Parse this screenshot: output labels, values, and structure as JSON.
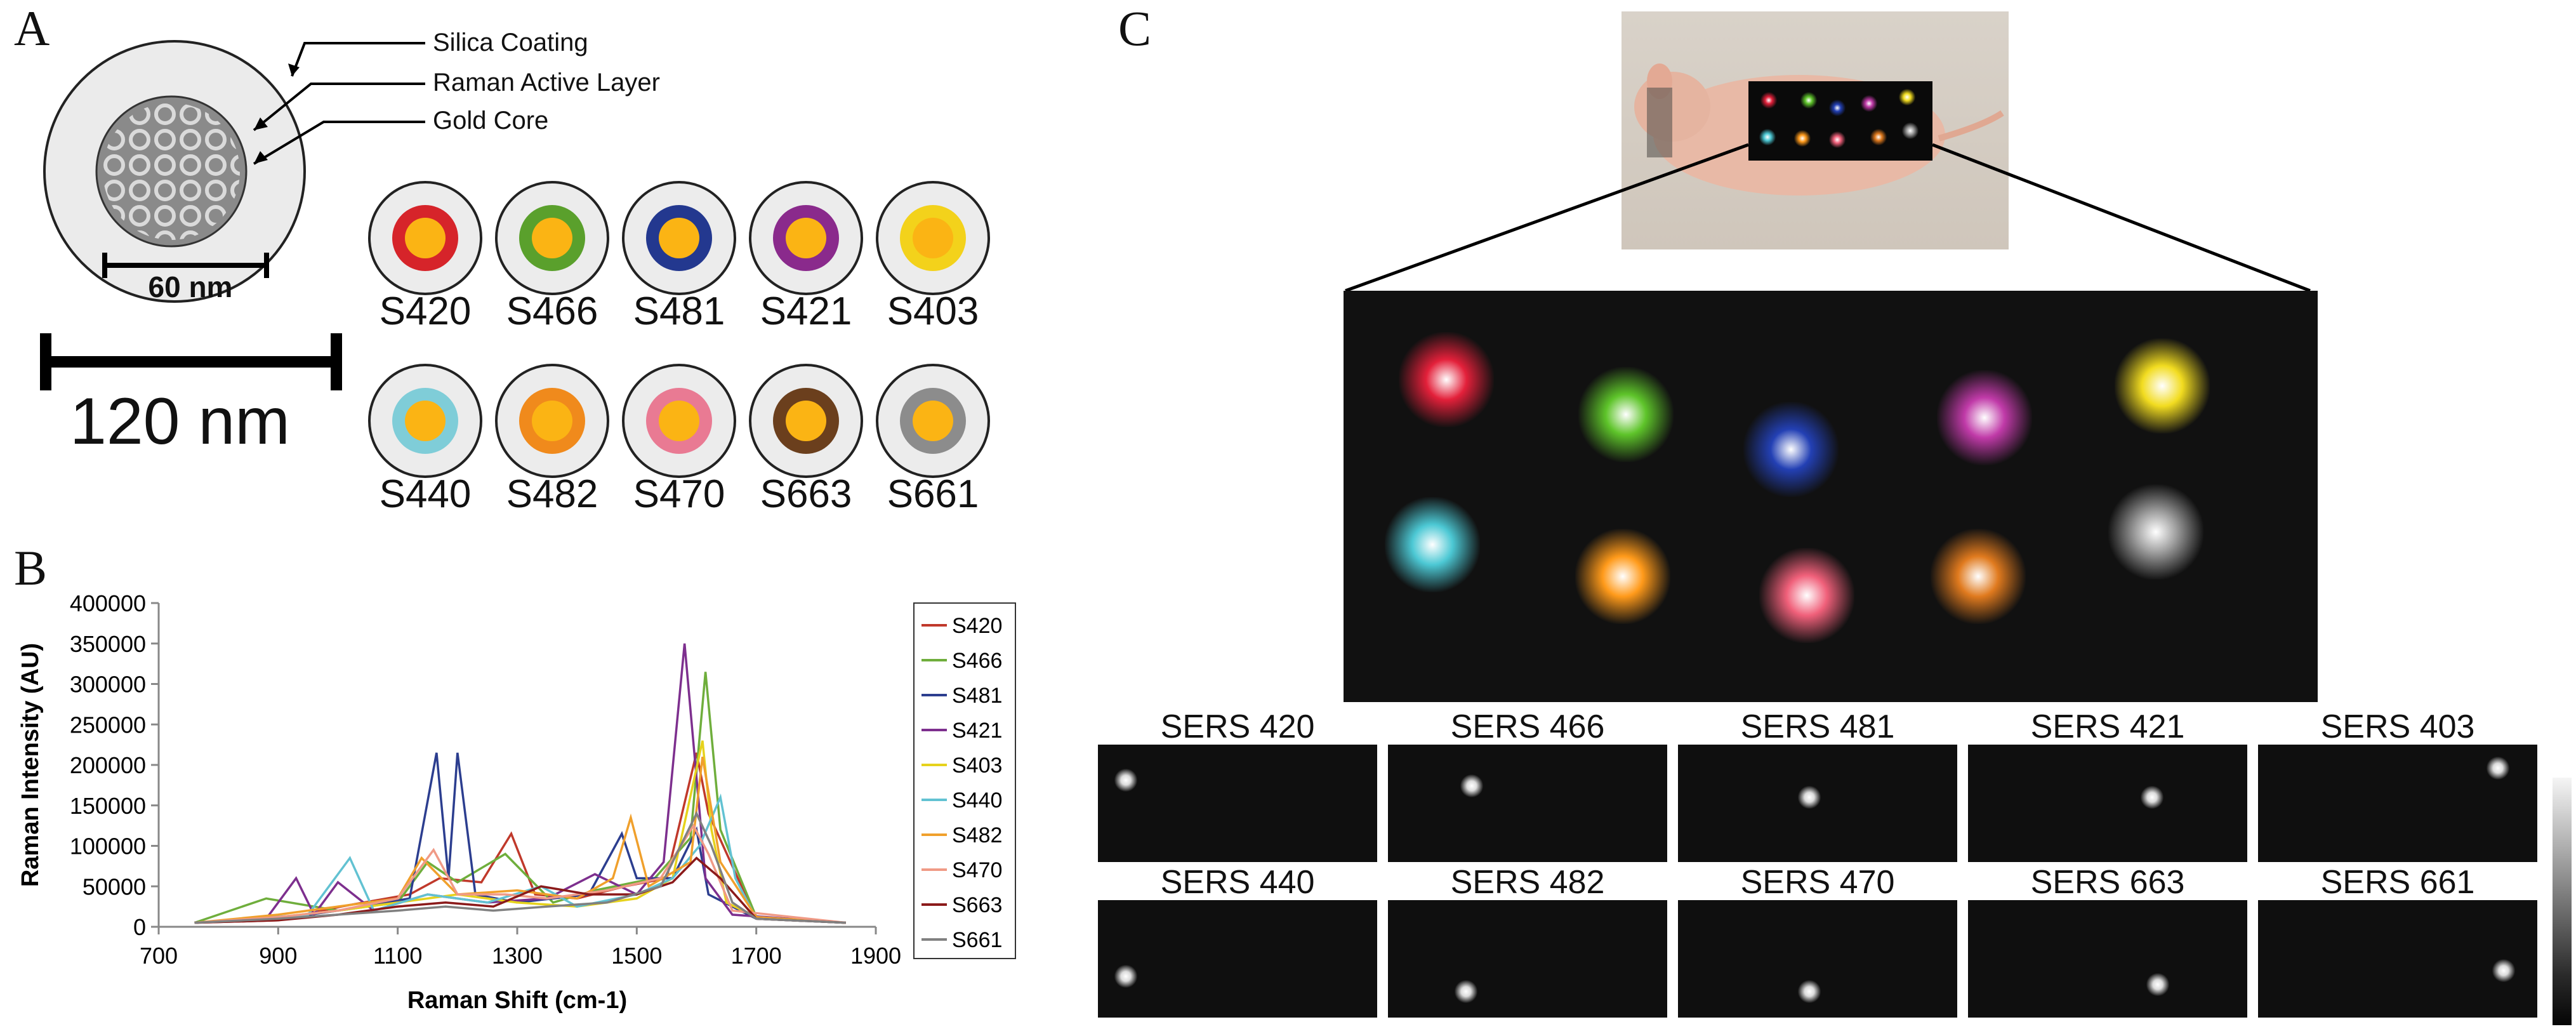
{
  "panels": {
    "a": "A",
    "b": "B",
    "c": "C"
  },
  "panel_a": {
    "callouts": [
      "Silica Coating",
      "Raman Active Layer",
      "Gold Core"
    ],
    "scale_small": "60 nm",
    "scale_large": "120 nm",
    "nanoparticles": [
      {
        "label": "S420",
        "color": "#d6242a"
      },
      {
        "label": "S466",
        "color": "#5aa02c"
      },
      {
        "label": "S481",
        "color": "#23388f"
      },
      {
        "label": "S421",
        "color": "#8a2a8c"
      },
      {
        "label": "S403",
        "color": "#f3d21b"
      },
      {
        "label": "S440",
        "color": "#7fcdd8"
      },
      {
        "label": "S482",
        "color": "#f08a1c"
      },
      {
        "label": "S470",
        "color": "#e97a93"
      },
      {
        "label": "S663",
        "color": "#6b3f1d"
      },
      {
        "label": "S661",
        "color": "#8c8c8c"
      }
    ]
  },
  "chart_data": {
    "type": "line",
    "title": "",
    "xlabel": "Raman Shift (cm-1)",
    "ylabel": "Raman Intensity (AU)",
    "xlim": [
      700,
      1900
    ],
    "ylim": [
      0,
      400000
    ],
    "xticks": [
      700,
      900,
      1100,
      1300,
      1500,
      1700,
      1900
    ],
    "yticks": [
      0,
      50000,
      100000,
      150000,
      200000,
      250000,
      300000,
      350000,
      400000
    ],
    "xtick_labels": [
      "700",
      "900",
      "1100",
      "1300",
      "1500",
      "1700",
      "1900"
    ],
    "ytick_labels": [
      "0",
      "50000",
      "100000",
      "150000",
      "200000",
      "250000",
      "300000",
      "350000",
      "400000"
    ],
    "legend_position": "right",
    "series": [
      {
        "name": "S420",
        "color": "#c0392b",
        "x": [
          760,
          900,
          1005,
          1120,
          1170,
          1240,
          1290,
          1330,
          1400,
          1480,
          1550,
          1600,
          1620,
          1700,
          1850
        ],
        "y": [
          5000,
          8000,
          25000,
          40000,
          60000,
          55000,
          115000,
          40000,
          35000,
          50000,
          60000,
          215000,
          140000,
          10000,
          5000
        ]
      },
      {
        "name": "S466",
        "color": "#6fae3c",
        "x": [
          760,
          880,
          1000,
          1100,
          1150,
          1200,
          1280,
          1360,
          1430,
          1530,
          1590,
          1615,
          1640,
          1700,
          1850
        ],
        "y": [
          5000,
          35000,
          20000,
          30000,
          80000,
          55000,
          90000,
          30000,
          45000,
          60000,
          110000,
          315000,
          120000,
          12000,
          5000
        ]
      },
      {
        "name": "S481",
        "color": "#2c3e8f",
        "x": [
          760,
          900,
          1000,
          1120,
          1165,
          1185,
          1200,
          1230,
          1300,
          1420,
          1475,
          1500,
          1560,
          1600,
          1620,
          1700,
          1850
        ],
        "y": [
          5000,
          10000,
          20000,
          35000,
          215000,
          60000,
          215000,
          40000,
          30000,
          40000,
          115000,
          60000,
          60000,
          120000,
          40000,
          10000,
          5000
        ]
      },
      {
        "name": "S421",
        "color": "#7d2f8e",
        "x": [
          760,
          880,
          930,
          960,
          1000,
          1060,
          1150,
          1250,
          1350,
          1430,
          1500,
          1545,
          1580,
          1615,
          1660,
          1850
        ],
        "y": [
          5000,
          10000,
          60000,
          15000,
          55000,
          20000,
          40000,
          30000,
          35000,
          65000,
          40000,
          80000,
          350000,
          60000,
          15000,
          5000
        ]
      },
      {
        "name": "S403",
        "color": "#e6d21c",
        "x": [
          760,
          900,
          1000,
          1100,
          1200,
          1300,
          1400,
          1500,
          1560,
          1610,
          1625,
          1650,
          1700,
          1850
        ],
        "y": [
          5000,
          12000,
          20000,
          30000,
          40000,
          30000,
          25000,
          35000,
          60000,
          230000,
          120000,
          30000,
          12000,
          5000
        ]
      },
      {
        "name": "S440",
        "color": "#62c2d2",
        "x": [
          760,
          950,
          1020,
          1060,
          1150,
          1250,
          1340,
          1400,
          1500,
          1560,
          1605,
          1640,
          1665,
          1700,
          1850
        ],
        "y": [
          5000,
          15000,
          85000,
          20000,
          40000,
          30000,
          50000,
          25000,
          40000,
          60000,
          100000,
          160000,
          60000,
          10000,
          5000
        ]
      },
      {
        "name": "S482",
        "color": "#f0a02c",
        "x": [
          760,
          900,
          1000,
          1100,
          1140,
          1200,
          1300,
          1400,
          1460,
          1490,
          1520,
          1590,
          1610,
          1640,
          1700,
          1850
        ],
        "y": [
          5000,
          15000,
          25000,
          35000,
          85000,
          40000,
          45000,
          35000,
          60000,
          135000,
          50000,
          80000,
          210000,
          80000,
          12000,
          5000
        ]
      },
      {
        "name": "S470",
        "color": "#f09a86",
        "x": [
          760,
          900,
          1000,
          1100,
          1160,
          1200,
          1280,
          1350,
          1450,
          1540,
          1595,
          1620,
          1660,
          1850
        ],
        "y": [
          5000,
          12000,
          20000,
          35000,
          95000,
          40000,
          40000,
          35000,
          45000,
          60000,
          125000,
          90000,
          20000,
          5000
        ]
      },
      {
        "name": "S663",
        "color": "#8b1a1a",
        "x": [
          760,
          900,
          1000,
          1100,
          1180,
          1260,
          1340,
          1420,
          1500,
          1560,
          1600,
          1640,
          1700,
          1850
        ],
        "y": [
          5000,
          8000,
          15000,
          25000,
          30000,
          25000,
          50000,
          40000,
          40000,
          55000,
          85000,
          60000,
          10000,
          5000
        ]
      },
      {
        "name": "S661",
        "color": "#808080",
        "x": [
          760,
          900,
          1000,
          1100,
          1180,
          1260,
          1350,
          1450,
          1540,
          1600,
          1625,
          1660,
          1700,
          1850
        ],
        "y": [
          5000,
          10000,
          15000,
          20000,
          25000,
          20000,
          25000,
          30000,
          50000,
          140000,
          100000,
          30000,
          10000,
          5000
        ]
      }
    ]
  },
  "panel_c": {
    "spots": [
      {
        "color": "#e3203a"
      },
      {
        "color": "#5ec42a"
      },
      {
        "color": "#2340b4"
      },
      {
        "color": "#c03aa8"
      },
      {
        "color": "#f2dc20"
      },
      {
        "color": "#4cc8d4"
      },
      {
        "color": "#ff9a1a"
      },
      {
        "color": "#f0607a"
      },
      {
        "color": "#e07a1e"
      },
      {
        "color": "#a0a0a0"
      }
    ],
    "tiles": [
      {
        "label": "SERS 420",
        "spot": [
          0.1,
          0.3
        ]
      },
      {
        "label": "SERS 466",
        "spot": [
          0.3,
          0.35
        ]
      },
      {
        "label": "SERS 481",
        "spot": [
          0.47,
          0.45
        ]
      },
      {
        "label": "SERS 421",
        "spot": [
          0.66,
          0.45
        ]
      },
      {
        "label": "SERS 403",
        "spot": [
          0.86,
          0.2
        ]
      },
      {
        "label": "SERS 440",
        "spot": [
          0.1,
          0.65
        ]
      },
      {
        "label": "SERS 482",
        "spot": [
          0.28,
          0.78
        ]
      },
      {
        "label": "SERS 470",
        "spot": [
          0.47,
          0.78
        ]
      },
      {
        "label": "SERS 663",
        "spot": [
          0.68,
          0.72
        ]
      },
      {
        "label": "SERS 661",
        "spot": [
          0.88,
          0.6
        ]
      }
    ]
  }
}
